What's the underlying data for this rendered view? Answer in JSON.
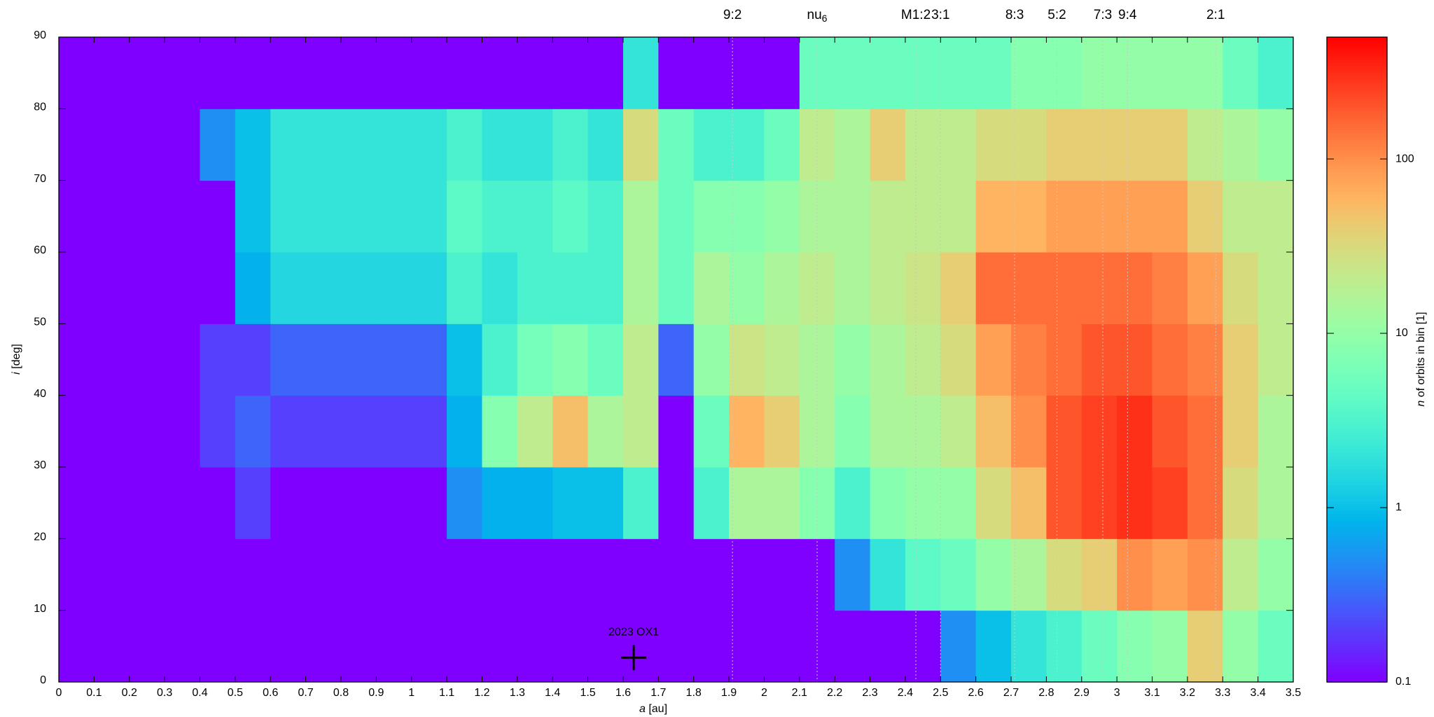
{
  "chart_data": {
    "type": "heatmap",
    "palette": "rainbow",
    "xlabel": {
      "var": "a",
      "unit": "[au]"
    },
    "ylabel": {
      "var": "i",
      "unit": "[deg]"
    },
    "zlabel": {
      "var": "n",
      "unit": "of orbits in bin [1]"
    },
    "xlim": [
      0,
      3.5
    ],
    "ylim": [
      0,
      90
    ],
    "zlim": [
      0.1,
      500
    ],
    "zscale": "log",
    "xticks": [
      0,
      0.1,
      0.2,
      0.3,
      0.4,
      0.5,
      0.6,
      0.7,
      0.8,
      0.9,
      1,
      1.1,
      1.2,
      1.3,
      1.4,
      1.5,
      1.6,
      1.7,
      1.8,
      1.9,
      2,
      2.1,
      2.2,
      2.3,
      2.4,
      2.5,
      2.6,
      2.7,
      2.8,
      2.9,
      3,
      3.1,
      3.2,
      3.3,
      3.4,
      3.5
    ],
    "yticks": [
      0,
      10,
      20,
      30,
      40,
      50,
      60,
      70,
      80,
      90
    ],
    "zticks": [
      0.1,
      1,
      10,
      100
    ],
    "x_bins": [
      0,
      0.1,
      0.2,
      0.3,
      0.4,
      0.5,
      0.6,
      0.7,
      0.8,
      0.9,
      1,
      1.1,
      1.2,
      1.3,
      1.4,
      1.5,
      1.6,
      1.7,
      1.8,
      1.9,
      2,
      2.1,
      2.2,
      2.3,
      2.4,
      2.5,
      2.6,
      2.7,
      2.8,
      2.9,
      3,
      3.1,
      3.2,
      3.3,
      3.4,
      3.5
    ],
    "y_bins": [
      0,
      10,
      20,
      30,
      40,
      50,
      60,
      70,
      80,
      90
    ],
    "values": [
      [
        0,
        0,
        0,
        0,
        0,
        0,
        0,
        0,
        0
      ],
      [
        0,
        0,
        0,
        0,
        0,
        0,
        0,
        0,
        0
      ],
      [
        0,
        0,
        0,
        0,
        0,
        0,
        0,
        0,
        0
      ],
      [
        0,
        0,
        0,
        0,
        0,
        0,
        0,
        0,
        0
      ],
      [
        0,
        0,
        0,
        0.2,
        0.2,
        0,
        0,
        0.5,
        0
      ],
      [
        0,
        0,
        0.2,
        0.3,
        0.2,
        0.8,
        1,
        1,
        0
      ],
      [
        0,
        0,
        0,
        0.2,
        0.3,
        1.5,
        2,
        2,
        0
      ],
      [
        0,
        0,
        0,
        0.2,
        0.3,
        1.5,
        2,
        2,
        0
      ],
      [
        0,
        0,
        0,
        0.2,
        0.3,
        1.5,
        2,
        2,
        0
      ],
      [
        0,
        0,
        0,
        0.2,
        0.3,
        1.5,
        2,
        2,
        0
      ],
      [
        0,
        0,
        0,
        0.2,
        0.3,
        1.5,
        2,
        2,
        0
      ],
      [
        0,
        0,
        0.5,
        0.8,
        1,
        3,
        4,
        3,
        0
      ],
      [
        0,
        0,
        0.8,
        8,
        3,
        2,
        3,
        2,
        0
      ],
      [
        0,
        0,
        0.8,
        20,
        6,
        3,
        3,
        2,
        0
      ],
      [
        0,
        0,
        1,
        50,
        8,
        3,
        4,
        3,
        0
      ],
      [
        0,
        0,
        1,
        15,
        5,
        3,
        3,
        2,
        0
      ],
      [
        0,
        0,
        3,
        20,
        20,
        15,
        15,
        30,
        2
      ],
      [
        0,
        0,
        0,
        0,
        0.3,
        5,
        5,
        5,
        0
      ],
      [
        0,
        0,
        3,
        5,
        10,
        15,
        8,
        3,
        0
      ],
      [
        0,
        0,
        15,
        60,
        25,
        10,
        8,
        3,
        0
      ],
      [
        0,
        0,
        15,
        40,
        20,
        15,
        10,
        5,
        0
      ],
      [
        0,
        0,
        8,
        15,
        15,
        20,
        15,
        20,
        5
      ],
      [
        0,
        0.5,
        3,
        8,
        10,
        15,
        15,
        15,
        5
      ],
      [
        0,
        2,
        8,
        15,
        15,
        20,
        20,
        40,
        5
      ],
      [
        0,
        4,
        10,
        15,
        20,
        25,
        20,
        20,
        5
      ],
      [
        0.5,
        5,
        10,
        20,
        30,
        40,
        20,
        20,
        5
      ],
      [
        1,
        10,
        30,
        50,
        80,
        150,
        60,
        30,
        5
      ],
      [
        2,
        15,
        50,
        100,
        120,
        150,
        60,
        30,
        8
      ],
      [
        3,
        30,
        200,
        200,
        150,
        150,
        80,
        40,
        8
      ],
      [
        5,
        40,
        250,
        250,
        200,
        150,
        80,
        40,
        10
      ],
      [
        8,
        100,
        300,
        300,
        200,
        150,
        80,
        40,
        10
      ],
      [
        10,
        80,
        250,
        200,
        150,
        120,
        80,
        40,
        10
      ],
      [
        40,
        100,
        150,
        150,
        120,
        80,
        40,
        20,
        10
      ],
      [
        10,
        20,
        30,
        40,
        40,
        30,
        20,
        15,
        5
      ],
      [
        5,
        10,
        15,
        15,
        20,
        20,
        20,
        10,
        3
      ]
    ],
    "resonances": [
      {
        "a": 1.91,
        "label": "9:2"
      },
      {
        "a": 2.15,
        "label": "nu",
        "sub": "6"
      },
      {
        "a": 2.43,
        "label": "M1:2"
      },
      {
        "a": 2.5,
        "label": "3:1"
      },
      {
        "a": 2.71,
        "label": "8:3"
      },
      {
        "a": 2.83,
        "label": "5:2"
      },
      {
        "a": 2.96,
        "label": "7:3"
      },
      {
        "a": 3.03,
        "label": "9:4"
      },
      {
        "a": 3.28,
        "label": "2:1"
      }
    ],
    "marker": {
      "a": 1.63,
      "i": 3.4,
      "label": "2023 OX1"
    }
  }
}
